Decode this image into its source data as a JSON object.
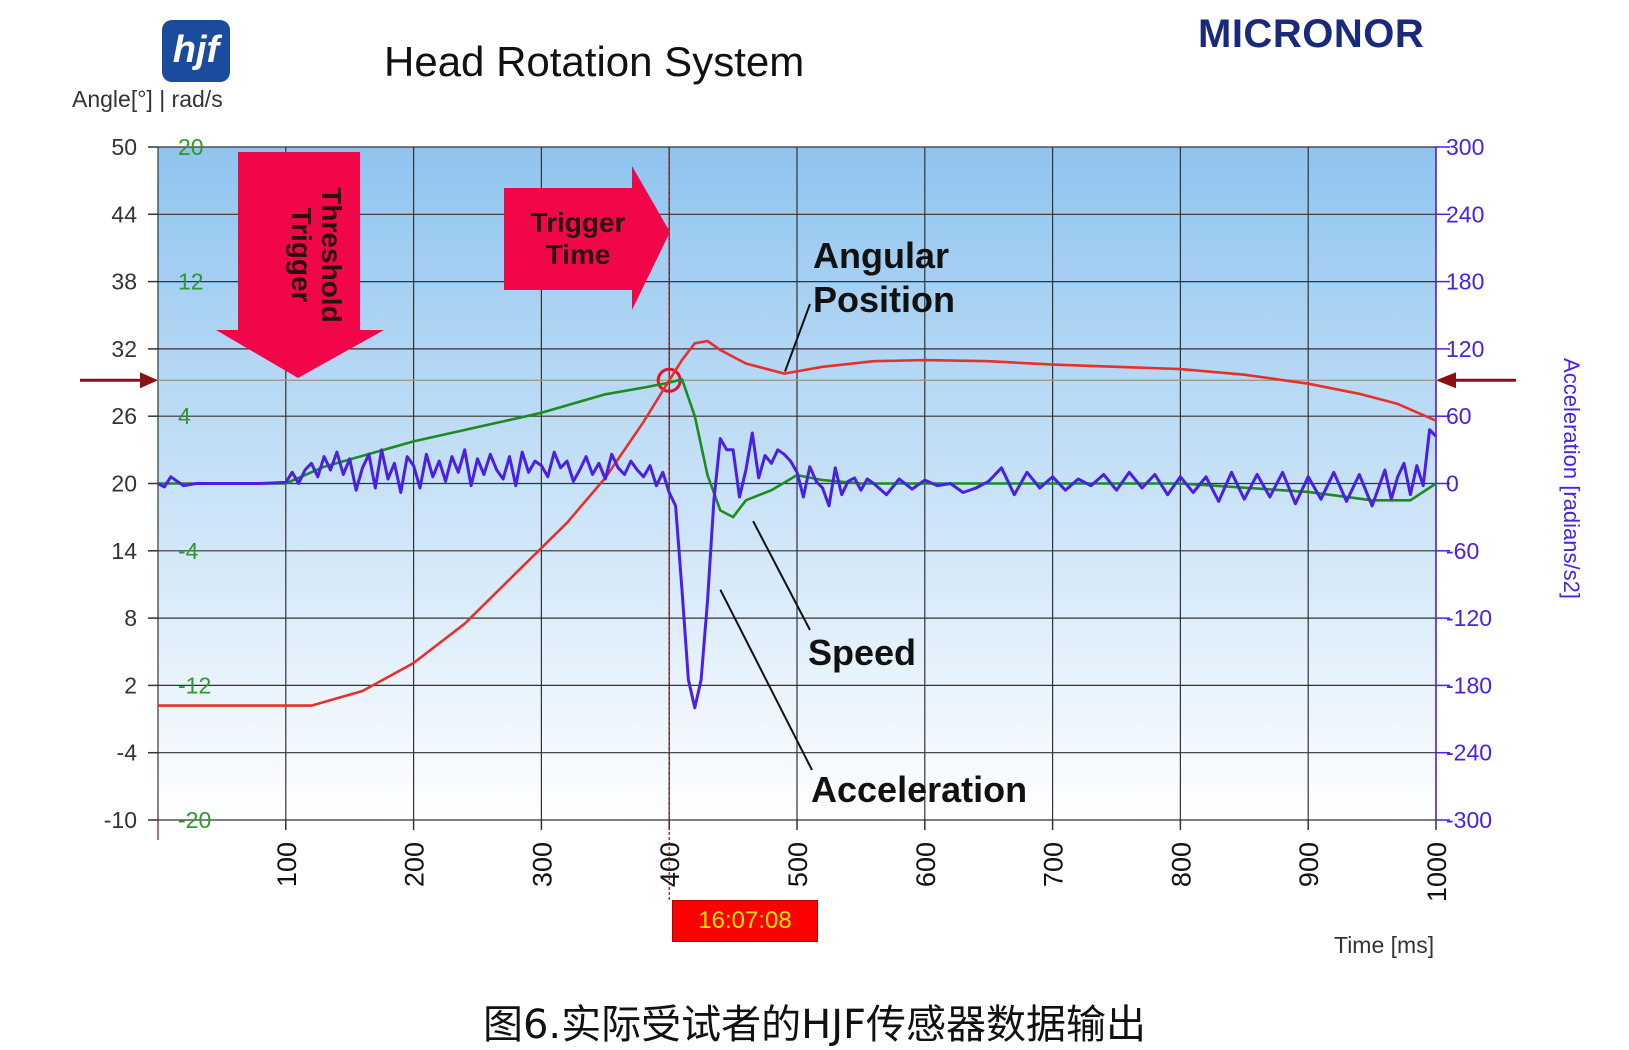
{
  "header": {
    "logo_text": "hjf",
    "brand": "MICRONOR",
    "title": "Head Rotation System",
    "y_left_label": "Angle[°] | rad/s"
  },
  "caption": "图6.实际受试者的HJF传感器数据输出",
  "time_badge": "16:07:08",
  "colors": {
    "angle": "#e8302a",
    "speed": "#1f8a1f",
    "acceleration": "#4a1fe6",
    "arrow": "#f2064a",
    "grid": "#333333",
    "bg_top": "#8fc4ef",
    "bg_bottom": "#ffffff",
    "left_ticks": "#333333",
    "speed_ticks": "#2e9a2e",
    "right_ticks": "#4a1fe6",
    "threshold_marker": "#8b1010"
  },
  "chart_data": {
    "type": "line",
    "xlabel": "Time [ms]",
    "ylabel_right": "Acceleration [radians/s2]",
    "xlim": [
      0,
      1000
    ],
    "x_ticks": [
      100,
      200,
      300,
      400,
      500,
      600,
      700,
      800,
      900,
      1000
    ],
    "y_left_angle": {
      "lim": [
        -10,
        50
      ],
      "ticks": [
        50,
        44,
        38,
        32,
        26,
        20,
        14,
        8,
        2,
        -4,
        -10
      ]
    },
    "y_left_speed": {
      "lim": [
        -20,
        20
      ],
      "ticks": [
        20,
        12,
        4,
        -4,
        -12,
        -20
      ]
    },
    "y_right_accel": {
      "lim": [
        -300,
        300
      ],
      "ticks": [
        300,
        240,
        180,
        120,
        60,
        0,
        -60,
        -120,
        -180,
        -240,
        -300
      ]
    },
    "grid": true,
    "trigger_time": 400,
    "trigger_threshold_angle": 29.2,
    "series": [
      {
        "name": "Angular Position",
        "axis": "angle",
        "x": [
          0,
          120,
          160,
          200,
          240,
          280,
          320,
          350,
          380,
          400,
          410,
          420,
          430,
          440,
          460,
          490,
          520,
          560,
          600,
          650,
          700,
          750,
          800,
          850,
          900,
          940,
          970,
          1000
        ],
        "y": [
          0.2,
          0.2,
          1.5,
          4.0,
          7.5,
          12.0,
          16.5,
          20.5,
          25.5,
          29.2,
          31.0,
          32.5,
          32.7,
          31.9,
          30.7,
          29.8,
          30.4,
          30.9,
          31.0,
          30.9,
          30.6,
          30.4,
          30.2,
          29.7,
          28.9,
          28.0,
          27.1,
          25.6
        ]
      },
      {
        "name": "Speed",
        "axis": "speed",
        "x": [
          0,
          100,
          130,
          200,
          300,
          350,
          380,
          400,
          410,
          420,
          430,
          440,
          450,
          460,
          480,
          500,
          520,
          550,
          600,
          700,
          800,
          900,
          950,
          980,
          1000
        ],
        "y": [
          0,
          0,
          1.0,
          2.5,
          4.2,
          5.3,
          5.7,
          6.0,
          6.2,
          4.0,
          0.5,
          -1.6,
          -2.0,
          -1.0,
          -0.4,
          0.5,
          0.2,
          0,
          0,
          0,
          0,
          -0.5,
          -1.0,
          -1.0,
          0
        ]
      },
      {
        "name": "Acceleration",
        "axis": "accel",
        "x": [
          0,
          5,
          10,
          15,
          20,
          30,
          50,
          80,
          100,
          105,
          110,
          115,
          120,
          125,
          130,
          135,
          140,
          145,
          150,
          155,
          160,
          165,
          170,
          175,
          180,
          185,
          190,
          195,
          200,
          205,
          210,
          215,
          220,
          225,
          230,
          235,
          240,
          245,
          250,
          255,
          260,
          265,
          270,
          275,
          280,
          285,
          290,
          295,
          300,
          305,
          310,
          315,
          320,
          325,
          330,
          335,
          340,
          345,
          350,
          355,
          360,
          365,
          370,
          375,
          380,
          385,
          390,
          395,
          400,
          405,
          410,
          415,
          420,
          425,
          430,
          435,
          440,
          445,
          450,
          455,
          460,
          465,
          470,
          475,
          480,
          485,
          490,
          495,
          500,
          505,
          510,
          515,
          520,
          525,
          530,
          535,
          540,
          545,
          550,
          555,
          560,
          570,
          580,
          590,
          600,
          610,
          620,
          630,
          640,
          650,
          660,
          670,
          680,
          690,
          700,
          710,
          720,
          730,
          740,
          750,
          760,
          770,
          780,
          790,
          800,
          810,
          820,
          830,
          840,
          850,
          860,
          870,
          880,
          890,
          900,
          910,
          920,
          930,
          940,
          950,
          960,
          965,
          970,
          975,
          980,
          985,
          990,
          995,
          1000
        ],
        "y": [
          0,
          -3,
          6,
          2,
          -2,
          0,
          0,
          0,
          1,
          10,
          0,
          12,
          18,
          6,
          24,
          12,
          28,
          8,
          22,
          -6,
          14,
          26,
          -4,
          30,
          4,
          18,
          -8,
          24,
          16,
          -4,
          26,
          6,
          20,
          2,
          24,
          10,
          30,
          -2,
          22,
          8,
          26,
          12,
          4,
          24,
          -2,
          28,
          10,
          20,
          16,
          6,
          28,
          14,
          20,
          2,
          12,
          24,
          8,
          18,
          4,
          26,
          14,
          8,
          20,
          12,
          6,
          16,
          -2,
          10,
          -8,
          -20,
          -95,
          -175,
          -200,
          -175,
          -105,
          -15,
          40,
          30,
          30,
          -12,
          12,
          45,
          5,
          25,
          18,
          30,
          26,
          20,
          10,
          -12,
          15,
          2,
          -4,
          -20,
          14,
          -10,
          2,
          5,
          -6,
          4,
          0,
          -10,
          4,
          -5,
          3,
          -2,
          0,
          -8,
          -4,
          2,
          14,
          -10,
          10,
          -4,
          6,
          -6,
          4,
          -2,
          8,
          -6,
          10,
          -4,
          8,
          -10,
          6,
          -8,
          6,
          -16,
          10,
          -14,
          8,
          -12,
          10,
          -18,
          6,
          -14,
          10,
          -16,
          8,
          -20,
          12,
          -14,
          6,
          18,
          -10,
          16,
          -2,
          48,
          42
        ]
      }
    ],
    "annotations": [
      {
        "text": "Trigger Threshold",
        "kind": "down-arrow"
      },
      {
        "text": "Trigger Time",
        "kind": "right-arrow"
      },
      {
        "text": "Angular Position",
        "x": 500,
        "angle": 29.8
      },
      {
        "text": "Speed",
        "x": 450,
        "speed": -2.0
      },
      {
        "text": "Acceleration",
        "x": 440,
        "accel": -100
      }
    ]
  }
}
